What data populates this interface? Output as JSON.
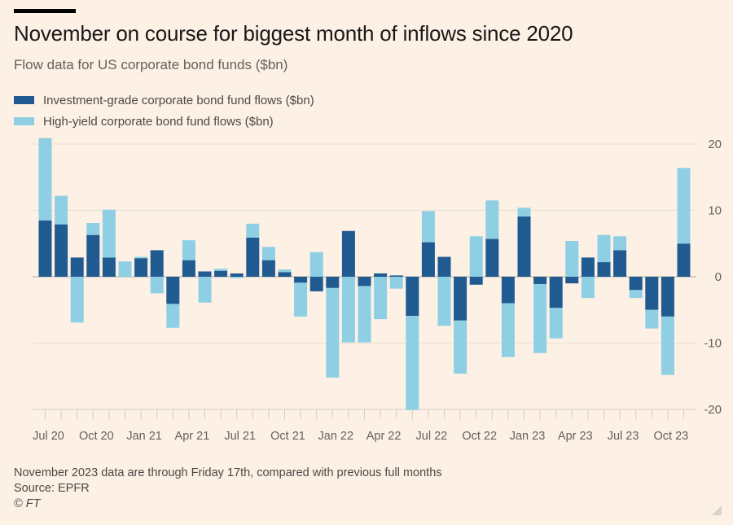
{
  "header": {
    "title": "November on course for biggest month of inflows since 2020",
    "subtitle": "Flow data for US corporate bond funds ($bn)"
  },
  "legend": [
    {
      "label": "Investment-grade corporate bond fund flows ($bn)",
      "color": "#1f5a91"
    },
    {
      "label": "High-yield corporate bond fund flows ($bn)",
      "color": "#8fcfe3"
    }
  ],
  "footer": {
    "note": "November 2023 data are through Friday 17th, compared with previous full months",
    "source": "Source: EPFR",
    "copyright": "© FT"
  },
  "colors": {
    "background": "#fdf0e5",
    "gridline": "#eadfd5",
    "axis_text": "#66605c"
  },
  "chart_data": {
    "type": "bar",
    "stacked": true,
    "title": "November on course for biggest month of inflows since 2020",
    "subtitle": "Flow data for US corporate bond funds ($bn)",
    "xlabel": "",
    "ylabel": "",
    "ylim": [
      -20,
      20
    ],
    "yticks": [
      20,
      10,
      0,
      -10,
      -20
    ],
    "y_axis_side": "right",
    "grid": true,
    "legend_position": "top-left",
    "categories": [
      "Jul 20",
      "Aug 20",
      "Sep 20",
      "Oct 20",
      "Nov 20",
      "Dec 20",
      "Jan 21",
      "Feb 21",
      "Mar 21",
      "Apr 21",
      "May 21",
      "Jun 21",
      "Jul 21",
      "Aug 21",
      "Sep 21",
      "Oct 21",
      "Nov 21",
      "Dec 21",
      "Jan 22",
      "Feb 22",
      "Mar 22",
      "Apr 22",
      "May 22",
      "Jun 22",
      "Jul 22",
      "Aug 22",
      "Sep 22",
      "Oct 22",
      "Nov 22",
      "Dec 22",
      "Jan 23",
      "Feb 23",
      "Mar 23",
      "Apr 23",
      "May 23",
      "Jun 23",
      "Jul 23",
      "Aug 23",
      "Sep 23",
      "Oct 23",
      "Nov 23"
    ],
    "xtick_labels": [
      "Jul 20",
      "Oct 20",
      "Jan 21",
      "Apr 21",
      "Jul 21",
      "Oct 21",
      "Jan 22",
      "Apr 22",
      "Jul 22",
      "Oct 22",
      "Jan 23",
      "Apr 23",
      "Jul 23",
      "Oct 23"
    ],
    "series": [
      {
        "name": "Investment-grade corporate bond fund flows ($bn)",
        "color": "#1f5a91",
        "values": [
          8.5,
          7.9,
          2.9,
          6.3,
          2.9,
          0.0,
          2.8,
          4.0,
          -4.1,
          2.5,
          0.8,
          0.9,
          0.5,
          5.9,
          2.5,
          0.7,
          -0.9,
          -2.2,
          -1.7,
          6.9,
          -1.4,
          0.5,
          0.2,
          -5.9,
          5.2,
          3.0,
          -6.6,
          -1.2,
          5.7,
          -4.0,
          9.1,
          -1.1,
          -4.7,
          -1.0,
          2.9,
          2.2,
          4.0,
          -2.0,
          -5.0,
          -6.0,
          5.0
        ]
      },
      {
        "name": "High-yield corporate bond fund flows ($bn)",
        "color": "#8fcfe3",
        "values": [
          12.4,
          4.3,
          -6.9,
          1.8,
          7.2,
          2.3,
          0.2,
          -2.5,
          -3.6,
          3.0,
          -3.9,
          0.3,
          -0.2,
          2.1,
          2.0,
          0.4,
          -5.1,
          3.7,
          -13.5,
          -9.9,
          -8.5,
          -6.4,
          -1.8,
          -14.2,
          4.7,
          -7.4,
          -8.0,
          6.1,
          5.8,
          -8.1,
          1.3,
          -10.4,
          -4.6,
          5.4,
          -3.2,
          4.1,
          2.1,
          -1.2,
          -2.8,
          -8.8,
          11.4
        ]
      }
    ],
    "notes": [
      "November 2023 data are through Friday 17th, compared with previous full months",
      "Source: EPFR"
    ]
  }
}
